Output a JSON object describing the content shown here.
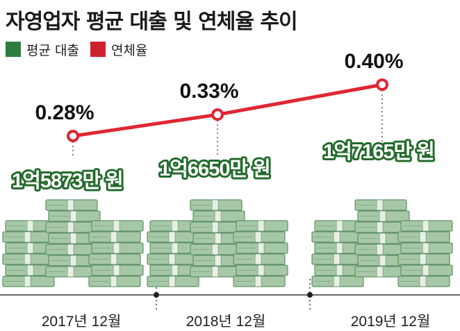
{
  "title": "자영업자 평균 대출 및 연체율 추이",
  "legend": [
    {
      "label": "평균 대출",
      "color": "#2e7d3f"
    },
    {
      "label": "연체율",
      "color": "#d0202e"
    }
  ],
  "colors": {
    "line": "#e02633",
    "money_light": "#a7c8a7",
    "money_dark": "#5f8f67",
    "label_outline": "#236b2c"
  },
  "chart_data": {
    "type": "line",
    "categories": [
      "2017년 12월",
      "2018년 12월",
      "2019년 12월"
    ],
    "series": [
      {
        "name": "연체율",
        "unit": "%",
        "values": [
          0.28,
          0.33,
          0.4
        ],
        "labels": [
          "0.28%",
          "0.33%",
          "0.40%"
        ]
      },
      {
        "name": "평균 대출",
        "values": [
          158730000,
          166500000,
          171650000
        ],
        "labels": [
          "1억5873만 원",
          "1억6650만 원",
          "1억7165만 원"
        ]
      }
    ]
  }
}
